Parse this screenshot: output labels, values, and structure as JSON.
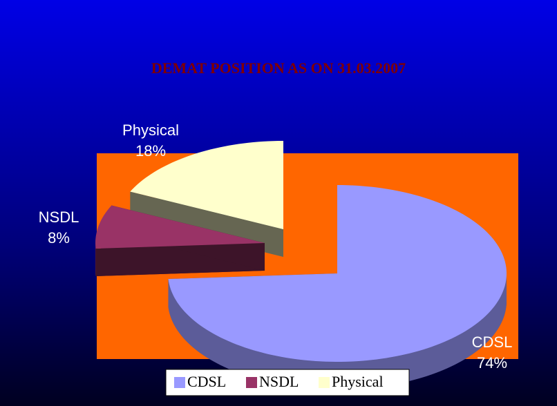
{
  "chart_data": {
    "type": "pie",
    "title": "DEMAT POSITION AS ON 31.03.2007",
    "categories": [
      "CDSL",
      "NSDL",
      "Physical"
    ],
    "values": [
      74,
      8,
      18
    ],
    "value_labels": [
      "74%",
      "8%",
      "18%"
    ],
    "colors": [
      "#9999ff",
      "#993366",
      "#ffffcc"
    ],
    "legend": "bottom"
  }
}
